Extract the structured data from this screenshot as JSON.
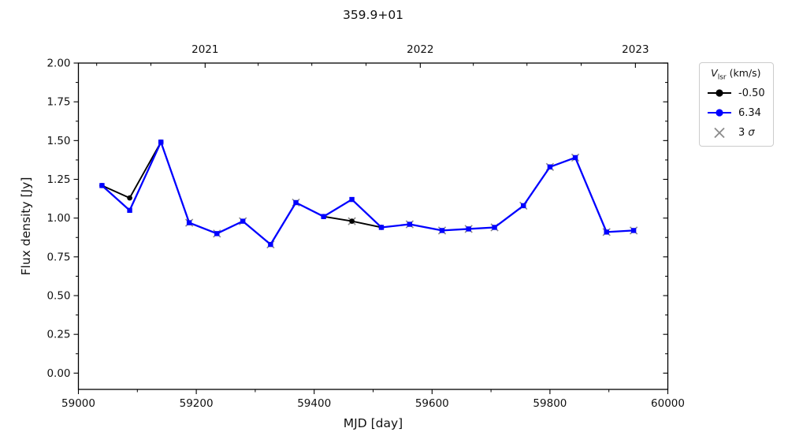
{
  "chart_data": {
    "type": "line",
    "title": "359.9+01",
    "xlabel": "MJD [day]",
    "ylabel": "Flux density [Jy]",
    "xlim": [
      59000,
      60000
    ],
    "ylim": [
      -0.105,
      2.0
    ],
    "x_ticks": [
      59000,
      59200,
      59400,
      59600,
      59800,
      60000
    ],
    "x_minor_ticks": [
      59100,
      59300,
      59500,
      59700,
      59900
    ],
    "y_ticks": [
      0.0,
      0.25,
      0.5,
      0.75,
      1.0,
      1.25,
      1.5,
      1.75,
      2.0
    ],
    "y_minor_ticks": [
      0.125,
      0.375,
      0.625,
      0.875,
      1.125,
      1.375,
      1.625,
      1.875
    ],
    "top_axis": {
      "ticks": [
        {
          "x": 59215,
          "label": "2021"
        },
        {
          "x": 59580,
          "label": "2022"
        },
        {
          "x": 59945,
          "label": "2023"
        }
      ],
      "minor_ticks": [
        59031,
        59123,
        59305,
        59396,
        59488,
        59670,
        59761,
        59853
      ]
    },
    "series": [
      {
        "name": "-0.50",
        "color": "#000000",
        "marker": "circle",
        "segments": [
          [
            [
              59040,
              1.21
            ],
            [
              59087,
              1.13
            ],
            [
              59140,
              1.49
            ]
          ],
          [
            [
              59416,
              1.01
            ],
            [
              59464,
              0.98
            ],
            [
              59514,
              0.94
            ]
          ]
        ]
      },
      {
        "name": "6.34",
        "color": "#0000ff",
        "marker": "square",
        "points": [
          [
            59040,
            1.21
          ],
          [
            59087,
            1.05
          ],
          [
            59140,
            1.49
          ],
          [
            59188,
            0.97
          ],
          [
            59235,
            0.9
          ],
          [
            59279,
            0.98
          ],
          [
            59326,
            0.83
          ],
          [
            59369,
            1.1
          ],
          [
            59416,
            1.01
          ],
          [
            59464,
            1.12
          ],
          [
            59514,
            0.94
          ],
          [
            59562,
            0.96
          ],
          [
            59617,
            0.92
          ],
          [
            59662,
            0.93
          ],
          [
            59706,
            0.94
          ],
          [
            59755,
            1.08
          ],
          [
            59800,
            1.33
          ],
          [
            59843,
            1.39
          ],
          [
            59896,
            0.91
          ],
          [
            59942,
            0.92
          ]
        ]
      }
    ],
    "sigma": {
      "label": "3 σ",
      "color": "#8c8c8c",
      "points": [
        [
          59188,
          0.97
        ],
        [
          59235,
          0.9
        ],
        [
          59279,
          0.98
        ],
        [
          59326,
          0.83
        ],
        [
          59369,
          1.1
        ],
        [
          59464,
          0.98
        ],
        [
          59562,
          0.96
        ],
        [
          59617,
          0.92
        ],
        [
          59662,
          0.93
        ],
        [
          59706,
          0.94
        ],
        [
          59755,
          1.08
        ],
        [
          59800,
          1.33
        ],
        [
          59843,
          1.39
        ],
        [
          59896,
          0.91
        ],
        [
          59942,
          0.92
        ]
      ]
    }
  },
  "legend": {
    "title_v": "V",
    "title_sub": "lsr",
    "title_suffix": " (km/s)",
    "entries": [
      {
        "label": "-0.50"
      },
      {
        "label": "6.34"
      }
    ],
    "sigma_prefix": "3 ",
    "sigma_symbol": "σ"
  }
}
